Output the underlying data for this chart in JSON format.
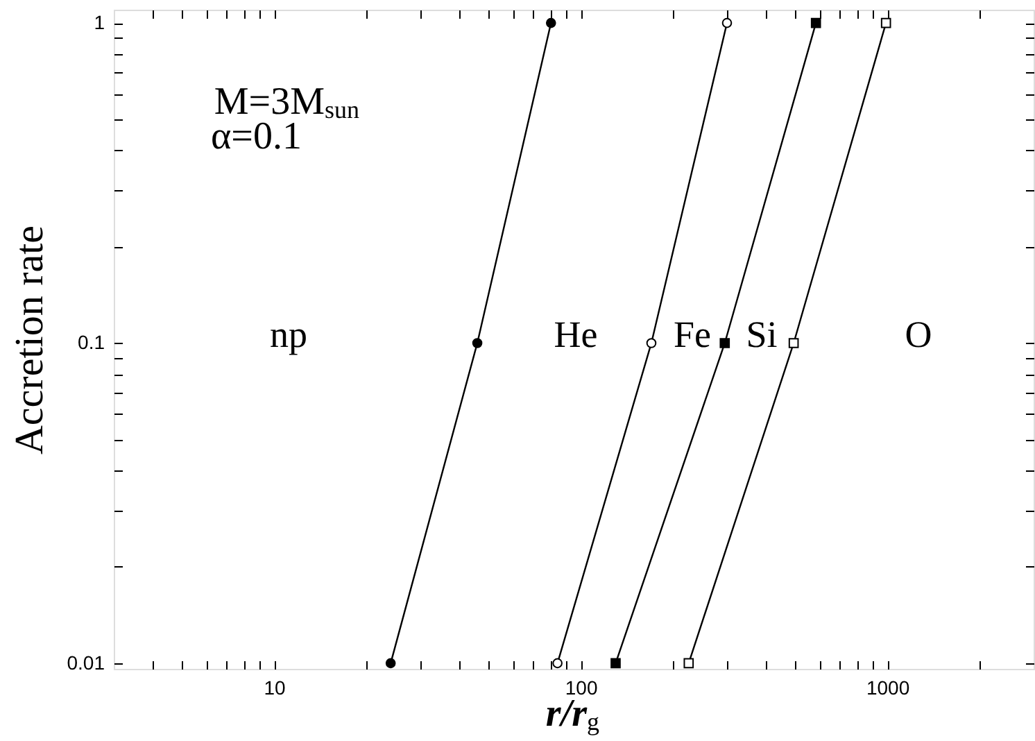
{
  "chart_data": {
    "type": "line",
    "xlabel": "r/r$_{g}$",
    "ylabel": "Accretion rate",
    "log": "xy",
    "line_style": "solid",
    "xlim": [
      3,
      3000
    ],
    "ylim": [
      0.0096,
      1.1
    ],
    "xticks": [
      {
        "value": 4,
        "label": null
      },
      {
        "value": 5,
        "label": null
      },
      {
        "value": 6,
        "label": null
      },
      {
        "value": 7,
        "label": null
      },
      {
        "value": 8,
        "label": null
      },
      {
        "value": 9,
        "label": null
      },
      10,
      {
        "value": 20,
        "label": null
      },
      {
        "value": 30,
        "label": null
      },
      {
        "value": 40,
        "label": null
      },
      {
        "value": 50,
        "label": null
      },
      {
        "value": 60,
        "label": null
      },
      {
        "value": 70,
        "label": null
      },
      {
        "value": 80,
        "label": null
      },
      {
        "value": 90,
        "label": null
      },
      100,
      {
        "value": 200,
        "label": null
      },
      {
        "value": 300,
        "label": null
      },
      {
        "value": 400,
        "label": null
      },
      {
        "value": 500,
        "label": null
      },
      {
        "value": 600,
        "label": null
      },
      {
        "value": 700,
        "label": null
      },
      {
        "value": 800,
        "label": null
      },
      {
        "value": 900,
        "label": null
      },
      1000,
      {
        "value": 2000,
        "label": null
      }
    ],
    "yticks": [
      0.01,
      {
        "value": 0.02,
        "label": null
      },
      {
        "value": 0.03,
        "label": null
      },
      {
        "value": 0.04,
        "label": null
      },
      {
        "value": 0.05,
        "label": null
      },
      {
        "value": 0.06,
        "label": null
      },
      {
        "value": 0.07,
        "label": null
      },
      {
        "value": 0.08,
        "label": null
      },
      {
        "value": 0.09,
        "label": null
      },
      0.1,
      {
        "value": 0.2,
        "label": null
      },
      {
        "value": 0.3,
        "label": null
      },
      {
        "value": 0.4,
        "label": null
      },
      {
        "value": 0.5,
        "label": null
      },
      {
        "value": 0.6,
        "label": null
      },
      {
        "value": 0.7,
        "label": null
      },
      {
        "value": 0.8,
        "label": null
      },
      {
        "value": 0.9,
        "label": null
      },
      1
    ],
    "series": [
      {
        "color": "#000000",
        "marker": "circle",
        "x": [
          24,
          46,
          80
        ],
        "values": [
          0.01,
          0.1,
          1
        ]
      },
      {
        "color": "#000000",
        "colors": [
          "#ffffff",
          "#ffffff",
          "#ffffff"
        ],
        "marker": "circle",
        "x": [
          84,
          170,
          300
        ],
        "values": [
          0.01,
          0.1,
          1
        ]
      },
      {
        "color": "#000000",
        "marker": "square",
        "x": [
          130,
          295,
          585
        ],
        "values": [
          0.01,
          0.1,
          1
        ]
      },
      {
        "color": "#000000",
        "colors": [
          "#ffffff",
          "#ffffff",
          "#ffffff"
        ],
        "marker": "square",
        "x": [
          225,
          495,
          990
        ],
        "values": [
          0.01,
          0.1,
          1
        ]
      }
    ],
    "annotations": [
      "M=3M$_{sun}$",
      "α=0.1",
      "np",
      "He",
      "Fe",
      "Si",
      "O"
    ]
  }
}
